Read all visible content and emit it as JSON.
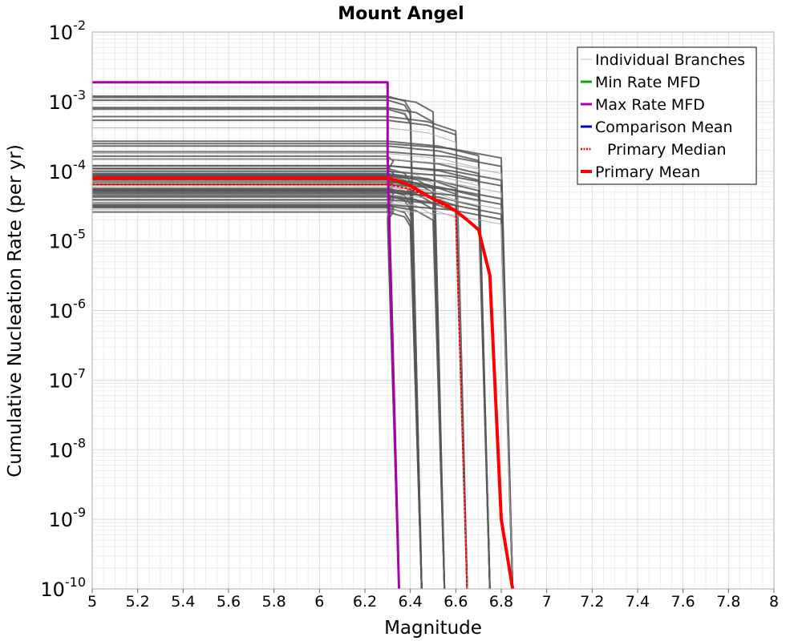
{
  "chart_data": {
    "type": "line",
    "title": "Mount Angel",
    "xlabel": "Magnitude",
    "ylabel": "Cumulative Nucleation Rate (per yr)",
    "xlim": [
      5,
      8
    ],
    "ylim_log10": [
      -10,
      -2
    ],
    "x_ticks": [
      "5",
      "5.2",
      "5.4",
      "5.6",
      "5.8",
      "6",
      "6.2",
      "6.4",
      "6.6",
      "6.8",
      "7",
      "7.2",
      "7.4",
      "7.6",
      "7.8",
      "8"
    ],
    "y_ticks": [
      {
        "base": "10",
        "exp": "-2"
      },
      {
        "base": "10",
        "exp": "-3"
      },
      {
        "base": "10",
        "exp": "-4"
      },
      {
        "base": "10",
        "exp": "-5"
      },
      {
        "base": "10",
        "exp": "-6"
      },
      {
        "base": "10",
        "exp": "-7"
      },
      {
        "base": "10",
        "exp": "-8"
      },
      {
        "base": "10",
        "exp": "-9"
      },
      {
        "base": "10",
        "exp": "-10"
      }
    ],
    "legend_position": "top-right",
    "legend": [
      {
        "label": "Individual Branches",
        "color": "#bbbbbb",
        "style": "thin"
      },
      {
        "label": "Min Rate MFD",
        "color": "#00aa00",
        "style": "solid"
      },
      {
        "label": "Max Rate MFD",
        "color": "#aa00aa",
        "style": "solid"
      },
      {
        "label": "Comparison Mean",
        "color": "#0000cc",
        "style": "solid"
      },
      {
        "label": "Primary Median",
        "color": "#ff0000",
        "style": "dotted"
      },
      {
        "label": "Primary Mean",
        "color": "#ff0000",
        "style": "thick"
      }
    ],
    "branch_groups": [
      {
        "mmax": 6.35,
        "rates": [
          0.000165,
          0.00011,
          9.5e-05,
          8.5e-05,
          7.5e-05,
          6.5e-05,
          5.6e-05,
          4.8e-05,
          4.2e-05,
          3.5e-05,
          3.1e-05
        ]
      },
      {
        "mmax": 6.45,
        "rates": [
          0.0012,
          0.00105,
          0.00083,
          0.00078,
          0.00011,
          9.5e-05,
          8.8e-05,
          7.5e-05,
          6.2e-05,
          5.3e-05,
          4.5e-05,
          3.6e-05,
          3e-05,
          2.6e-05
        ]
      },
      {
        "mmax": 6.55,
        "rates": [
          0.00115,
          0.00082,
          0.000105,
          9e-05,
          8e-05,
          6.6e-05,
          5.6e-05,
          4.6e-05,
          3.8e-05,
          3.2e-05
        ]
      },
      {
        "mmax": 6.65,
        "rates": [
          0.00061,
          0.00054,
          0.00042,
          9.2e-05,
          7.6e-05,
          6.3e-05,
          5.2e-05,
          4.3e-05,
          3.5e-05
        ]
      },
      {
        "mmax": 6.75,
        "rates": [
          0.00027,
          0.00023,
          0.00018,
          0.00015,
          0.00012,
          0.0001,
          8.5e-05,
          7e-05,
          5.9e-05,
          5e-05
        ]
      },
      {
        "mmax": 6.85,
        "rates": [
          0.00025,
          0.00019,
          0.00015,
          0.00012,
          0.0001,
          8e-05,
          6.5e-05,
          5.4e-05,
          4.6e-05,
          3.9e-05,
          3.3e-05,
          2.8e-05
        ]
      }
    ],
    "series": [
      {
        "name": "Max Rate MFD",
        "color": "#aa00aa",
        "width": 3,
        "dash": "",
        "x": [
          5.0,
          6.3,
          6.3,
          6.35
        ],
        "y": [
          0.0019,
          0.0019,
          0.00017,
          1e-10
        ]
      },
      {
        "name": "Primary Median",
        "color": "#ff0000",
        "width": 2.2,
        "dash": "3,2",
        "x": [
          5.0,
          6.3,
          6.4,
          6.45,
          6.5,
          6.55,
          6.6,
          6.65
        ],
        "y": [
          6.5e-05,
          6.5e-05,
          5.5e-05,
          4.7e-05,
          3.9e-05,
          3.2e-05,
          2.6e-05,
          1e-10
        ]
      },
      {
        "name": "Primary Mean",
        "color": "#ff0000",
        "width": 4,
        "dash": "",
        "x": [
          5.0,
          6.3,
          6.35,
          6.4,
          6.45,
          6.5,
          6.55,
          6.6,
          6.65,
          6.7,
          6.75,
          6.8,
          6.85
        ],
        "y": [
          8e-05,
          8e-05,
          7.2e-05,
          6.2e-05,
          5e-05,
          4e-05,
          3.4e-05,
          2.7e-05,
          2e-05,
          1.45e-05,
          3.2e-06,
          1e-09,
          1e-10
        ]
      }
    ]
  }
}
